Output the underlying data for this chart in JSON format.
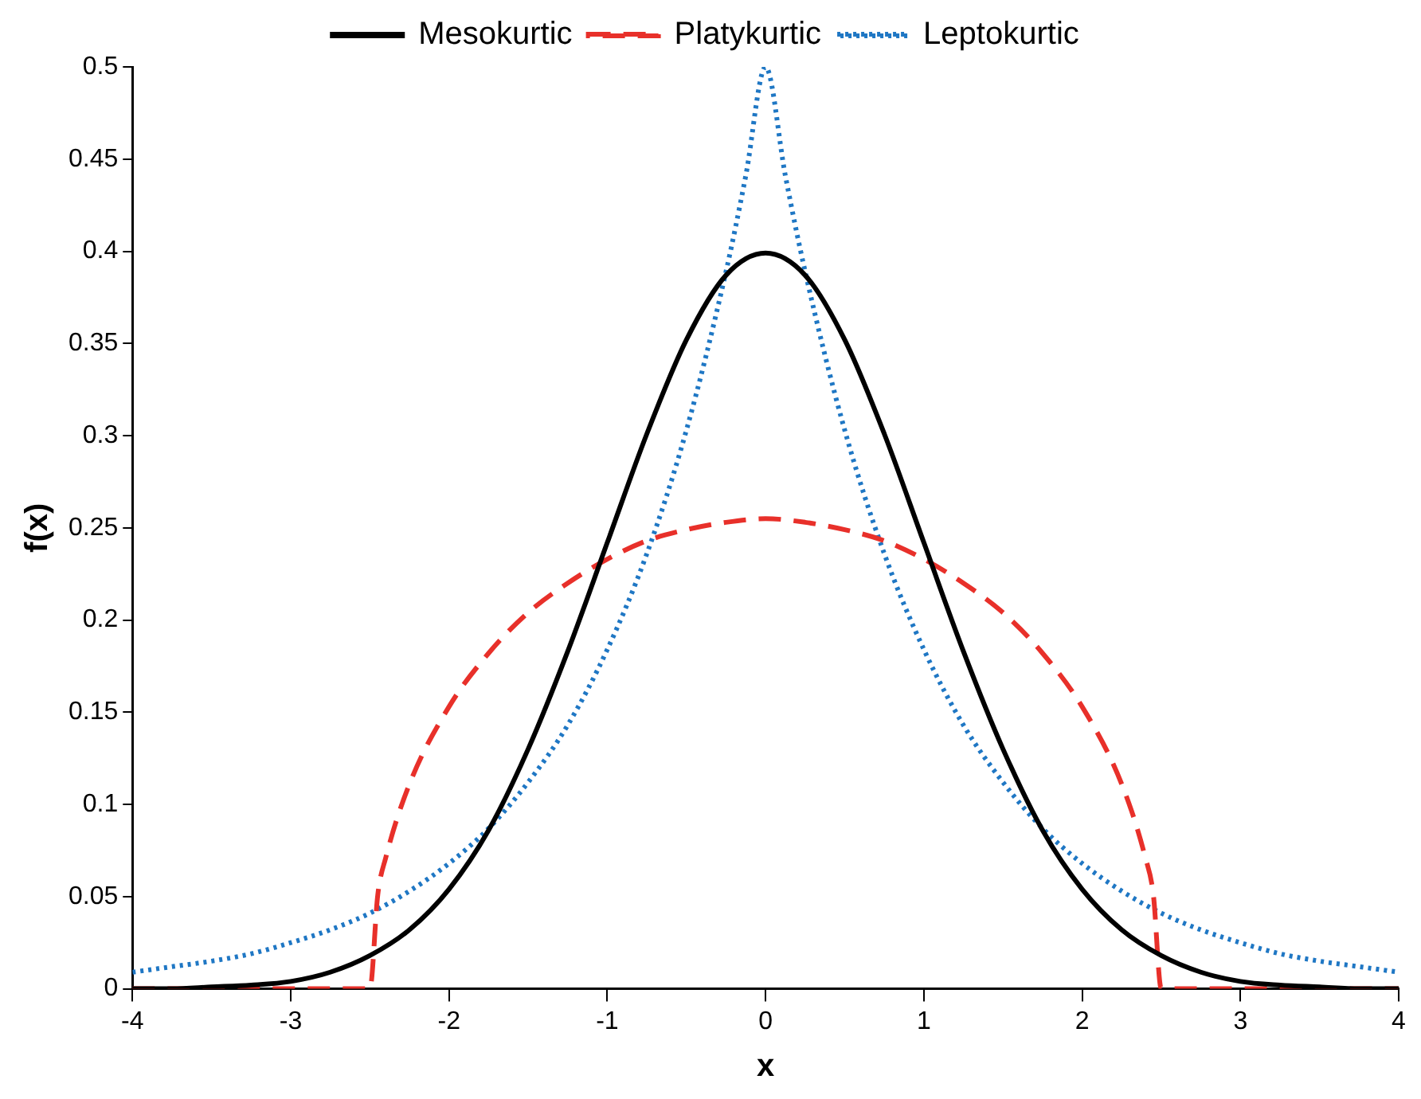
{
  "chart_data": {
    "type": "line",
    "xlabel": "x",
    "ylabel": "f(x)",
    "xlim": [
      -4,
      4
    ],
    "xticks": [
      -4,
      -3,
      -2,
      -1,
      0,
      1,
      2,
      3,
      4
    ],
    "ylim": [
      0,
      0.5
    ],
    "yticks": [
      0,
      0.05,
      0.1,
      0.15,
      0.2,
      0.25,
      0.3,
      0.35,
      0.4,
      0.45,
      0.5
    ],
    "grid": false,
    "legend": "top",
    "series": [
      {
        "name": "Mesokurtic",
        "color": "#000000",
        "line_style": "solid",
        "x": [
          -4,
          -3.75,
          -3.5,
          -3.25,
          -3,
          -2.75,
          -2.5,
          -2.25,
          -2,
          -1.75,
          -1.5,
          -1.25,
          -1,
          -0.75,
          -0.5,
          -0.25,
          0,
          0.25,
          0.5,
          0.75,
          1,
          1.25,
          1.5,
          1.75,
          2,
          2.25,
          2.5,
          2.75,
          3,
          3.25,
          3.5,
          3.75,
          4
        ],
        "values": [
          0,
          0,
          0.001,
          0.002,
          0.004,
          0.009,
          0.018,
          0.032,
          0.054,
          0.086,
          0.13,
          0.183,
          0.242,
          0.301,
          0.352,
          0.387,
          0.399,
          0.387,
          0.352,
          0.301,
          0.242,
          0.183,
          0.13,
          0.086,
          0.054,
          0.032,
          0.018,
          0.009,
          0.004,
          0.002,
          0.001,
          0,
          0
        ]
      },
      {
        "name": "Platykurtic",
        "color": "#e8302a",
        "line_style": "dashed",
        "x": [
          -4,
          -2.5,
          -2.45,
          -2.4,
          -2.25,
          -2,
          -1.75,
          -1.5,
          -1.25,
          -1,
          -0.75,
          -0.5,
          -0.25,
          0,
          0.25,
          0.5,
          0.75,
          1,
          1.25,
          1.5,
          1.75,
          2,
          2.25,
          2.4,
          2.45,
          2.5,
          4
        ],
        "values": [
          0,
          0,
          0.051,
          0.071,
          0.111,
          0.153,
          0.182,
          0.204,
          0.22,
          0.233,
          0.243,
          0.249,
          0.253,
          0.255,
          0.253,
          0.249,
          0.243,
          0.233,
          0.22,
          0.204,
          0.182,
          0.153,
          0.111,
          0.071,
          0.051,
          0,
          0
        ]
      },
      {
        "name": "Leptokurtic",
        "color": "#1f77c4",
        "line_style": "dotted",
        "x": [
          -4,
          -3.75,
          -3.5,
          -3.25,
          -3,
          -2.75,
          -2.5,
          -2.25,
          -2,
          -1.75,
          -1.5,
          -1.25,
          -1,
          -0.75,
          -0.5,
          -0.25,
          -0.125,
          0,
          0.125,
          0.25,
          0.5,
          0.75,
          1,
          1.25,
          1.5,
          1.75,
          2,
          2.25,
          2.5,
          2.75,
          3,
          3.25,
          3.5,
          3.75,
          4
        ],
        "values": [
          0.009,
          0.012,
          0.015,
          0.019,
          0.025,
          0.032,
          0.041,
          0.053,
          0.068,
          0.087,
          0.112,
          0.143,
          0.184,
          0.236,
          0.303,
          0.389,
          0.441,
          0.5,
          0.441,
          0.389,
          0.303,
          0.236,
          0.184,
          0.143,
          0.112,
          0.087,
          0.068,
          0.053,
          0.041,
          0.032,
          0.025,
          0.019,
          0.015,
          0.012,
          0.009
        ]
      }
    ]
  }
}
